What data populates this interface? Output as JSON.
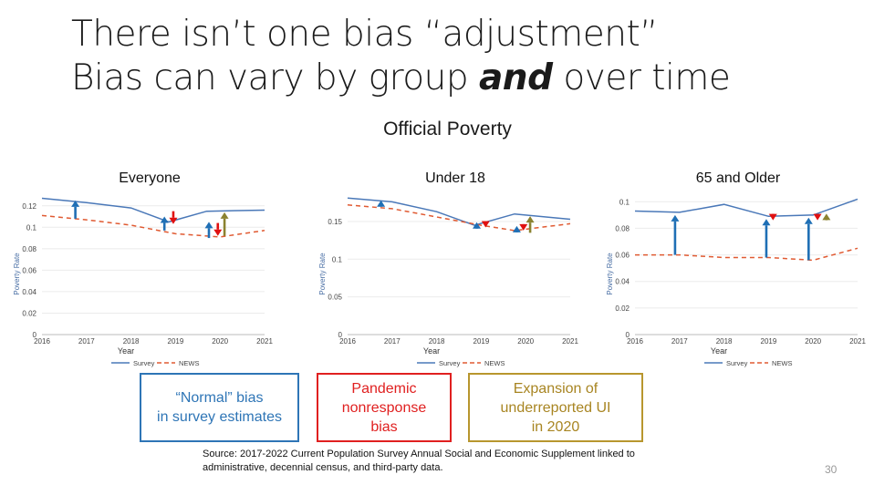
{
  "title_line1": "There isn’t one bias “adjustment”",
  "title_line2_prefix": "Bias can vary by group ",
  "title_line2_emph": "and",
  "title_line2_suffix": " over time",
  "subtitle": "Official Poverty",
  "legend_boxes": [
    {
      "text_lines": [
        "“Normal” bias",
        "in survey estimates"
      ],
      "color": "#2e75b6"
    },
    {
      "text_lines": [
        "Pandemic",
        "nonresponse",
        "bias"
      ],
      "color": "#e02020"
    },
    {
      "text_lines": [
        "Expansion of",
        "underreported UI",
        "in 2020"
      ],
      "color": "#b8962e"
    }
  ],
  "source": "Source: 2017-2022  Current Population Survey Annual Social and Economic Supplement linked to administrative, decennial census, and third-party data.",
  "page_number": "30",
  "colors": {
    "survey": "#4a78b8",
    "news": "#e05a32",
    "normal_bias": "#1f6fb5",
    "pandemic": "#e01010",
    "ui": "#8b8230"
  },
  "chart_data": [
    {
      "type": "line",
      "title": "Everyone",
      "xlabel": "Year",
      "ylabel": "Poverty Rate",
      "xlim": [
        2016,
        2021
      ],
      "ylim": [
        0,
        0.13
      ],
      "xticks": [
        2016,
        2017,
        2018,
        2019,
        2020,
        2021
      ],
      "xtick_labels": [
        "2016",
        "2017",
        "2018",
        "2019",
        "2020",
        "2021"
      ],
      "yticks": [
        0,
        0.02,
        0.04,
        0.06,
        0.08,
        0.1,
        0.12
      ],
      "ytick_labels": [
        "0",
        "0.02",
        "0.04",
        "0.06",
        "0.08",
        "0.1",
        "0.12"
      ],
      "series": [
        {
          "name": "Survey",
          "style": "solid",
          "x": [
            2016,
            2017,
            2018,
            2018.85,
            2019.7,
            2021
          ],
          "y": [
            0.127,
            0.123,
            0.118,
            0.105,
            0.115,
            0.116
          ]
        },
        {
          "name": "NEWS",
          "style": "dashed",
          "x": [
            2016,
            2017,
            2018,
            2019,
            2020,
            2021
          ],
          "y": [
            0.111,
            0.107,
            0.102,
            0.094,
            0.091,
            0.097
          ]
        }
      ],
      "arrows": [
        {
          "kind": "normal",
          "x": 2016.75,
          "y_from": 0.108,
          "y_to": 0.125
        },
        {
          "kind": "normal",
          "x": 2018.75,
          "y_from": 0.097,
          "y_to": 0.11
        },
        {
          "kind": "pandemic",
          "x": 2018.95,
          "y_from": 0.115,
          "y_to": 0.103
        },
        {
          "kind": "normal",
          "x": 2019.75,
          "y_from": 0.09,
          "y_to": 0.105
        },
        {
          "kind": "pandemic",
          "x": 2019.95,
          "y_from": 0.104,
          "y_to": 0.092
        },
        {
          "kind": "ui",
          "x": 2020.1,
          "y_from": 0.092,
          "y_to": 0.114
        }
      ],
      "legend": [
        "Survey",
        "NEWS"
      ],
      "legend_position": "bottom"
    },
    {
      "type": "line",
      "title": "Under 18",
      "xlabel": "Year",
      "ylabel": "Poverty Rate",
      "xlim": [
        2016,
        2021
      ],
      "ylim": [
        0,
        0.185
      ],
      "xticks": [
        2016,
        2017,
        2018,
        2019,
        2020,
        2021
      ],
      "xtick_labels": [
        "2016",
        "2017",
        "2018",
        "2019",
        "2020",
        "2021"
      ],
      "yticks": [
        0,
        0.05,
        0.1,
        0.15
      ],
      "ytick_labels": [
        "0",
        "0.05",
        "0.1",
        "0.15"
      ],
      "series": [
        {
          "name": "Survey",
          "style": "solid",
          "x": [
            2016,
            2017,
            2018,
            2018.85,
            2019.75,
            2021
          ],
          "y": [
            0.181,
            0.176,
            0.163,
            0.145,
            0.16,
            0.153
          ]
        },
        {
          "name": "NEWS",
          "style": "dashed",
          "x": [
            2016,
            2017,
            2018,
            2019,
            2019.75,
            2021
          ],
          "y": [
            0.172,
            0.167,
            0.156,
            0.145,
            0.138,
            0.147
          ]
        }
      ],
      "arrows": [
        {
          "kind": "normal",
          "x": 2016.75,
          "y_from": 0.17,
          "y_to": 0.178
        },
        {
          "kind": "normal",
          "x": 2018.9,
          "y_from": 0.141,
          "y_to": 0.149
        },
        {
          "kind": "pandemic",
          "x": 2019.1,
          "y_from": 0.15,
          "y_to": 0.142
        },
        {
          "kind": "normal",
          "x": 2019.8,
          "y_from": 0.136,
          "y_to": 0.144
        },
        {
          "kind": "pandemic",
          "x": 2019.95,
          "y_from": 0.146,
          "y_to": 0.138
        },
        {
          "kind": "ui",
          "x": 2020.1,
          "y_from": 0.135,
          "y_to": 0.157
        }
      ],
      "legend": [
        "Survey",
        "NEWS"
      ],
      "legend_position": "bottom"
    },
    {
      "type": "line",
      "title": "65 and Older",
      "xlabel": "Year",
      "ylabel": "Poverty Rate",
      "xlim": [
        2016,
        2021
      ],
      "ylim": [
        0,
        0.105
      ],
      "xticks": [
        2016,
        2017,
        2018,
        2019,
        2020,
        2021
      ],
      "xtick_labels": [
        "2016",
        "2017",
        "2018",
        "2019",
        "2020",
        "2021"
      ],
      "yticks": [
        0,
        0.02,
        0.04,
        0.06,
        0.08,
        0.1
      ],
      "ytick_labels": [
        "0",
        "0.02",
        "0.04",
        "0.06",
        "0.08",
        "0.1"
      ],
      "series": [
        {
          "name": "Survey",
          "style": "solid",
          "x": [
            2016,
            2017,
            2018,
            2019,
            2020,
            2021
          ],
          "y": [
            0.093,
            0.092,
            0.098,
            0.089,
            0.09,
            0.102
          ]
        },
        {
          "name": "NEWS",
          "style": "dashed",
          "x": [
            2016,
            2017,
            2018,
            2019,
            2020,
            2021
          ],
          "y": [
            0.06,
            0.06,
            0.058,
            0.058,
            0.056,
            0.065
          ]
        }
      ],
      "arrows": [
        {
          "kind": "normal",
          "x": 2016.9,
          "y_from": 0.06,
          "y_to": 0.09
        },
        {
          "kind": "normal",
          "x": 2018.95,
          "y_from": 0.058,
          "y_to": 0.087
        },
        {
          "kind": "pandemic",
          "x": 2019.1,
          "y_from": 0.09,
          "y_to": 0.086
        },
        {
          "kind": "normal",
          "x": 2019.9,
          "y_from": 0.056,
          "y_to": 0.088
        },
        {
          "kind": "pandemic",
          "x": 2020.1,
          "y_from": 0.09,
          "y_to": 0.086
        },
        {
          "kind": "ui",
          "x": 2020.3,
          "y_from": 0.086,
          "y_to": 0.091
        }
      ],
      "legend": [
        "Survey",
        "NEWS"
      ],
      "legend_position": "bottom"
    }
  ]
}
